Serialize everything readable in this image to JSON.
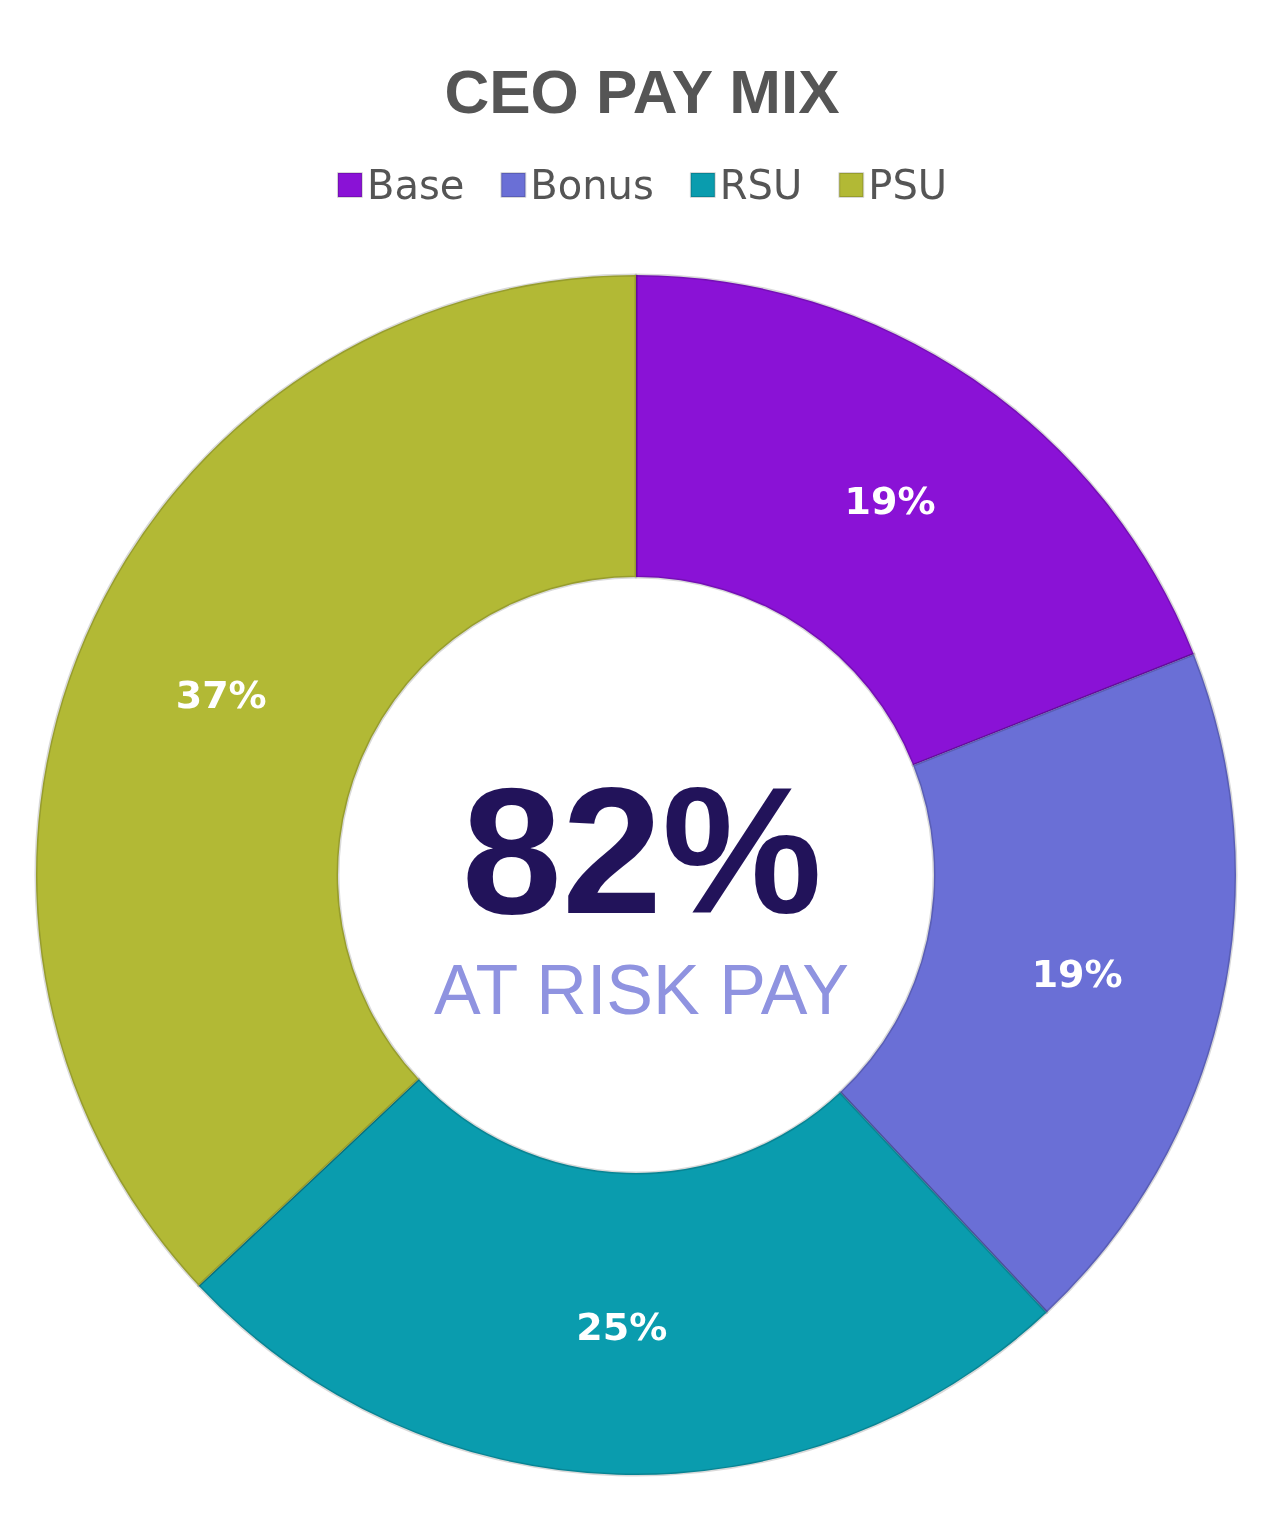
{
  "chart_data": {
    "type": "donut",
    "title": "CEO PAY MIX",
    "categories": [
      "Base",
      "Bonus",
      "RSU",
      "PSU"
    ],
    "values": [
      19,
      19,
      25,
      37
    ],
    "colors": [
      "#8a12d6",
      "#6a6fd6",
      "#0a9cae",
      "#b2b935"
    ],
    "value_labels": [
      "19%",
      "19%",
      "25%",
      "37%"
    ],
    "legend": "top",
    "annotations": [
      "82%",
      "AT RISK PAY"
    ]
  }
}
